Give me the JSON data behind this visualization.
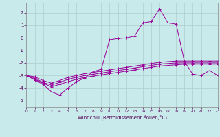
{
  "xlabel": "Windchill (Refroidissement éolien,°C)",
  "background_color": "#c8eaea",
  "grid_color": "#b0cccc",
  "line_color": "#990099",
  "xlim": [
    0,
    23
  ],
  "ylim": [
    -5.5,
    2.8
  ],
  "yticks": [
    -5,
    -4,
    -3,
    -2,
    -1,
    0,
    1,
    2
  ],
  "xticks": [
    0,
    1,
    2,
    3,
    4,
    5,
    6,
    7,
    8,
    9,
    10,
    11,
    12,
    13,
    14,
    15,
    16,
    17,
    18,
    19,
    20,
    21,
    22,
    23
  ],
  "series1_x": [
    0,
    1,
    2,
    3,
    4,
    5,
    6,
    7,
    8,
    9,
    10,
    11,
    12,
    13,
    14,
    15,
    16,
    17,
    18,
    19,
    20,
    21,
    22,
    23
  ],
  "series1_y": [
    -3.0,
    -3.3,
    -3.6,
    -3.9,
    -3.7,
    -3.5,
    -3.3,
    -3.15,
    -3.05,
    -2.95,
    -2.85,
    -2.75,
    -2.65,
    -2.55,
    -2.45,
    -2.35,
    -2.25,
    -2.2,
    -2.15,
    -2.1,
    -2.1,
    -2.1,
    -2.1,
    -2.1
  ],
  "series2_x": [
    0,
    1,
    2,
    3,
    4,
    5,
    6,
    7,
    8,
    9,
    10,
    11,
    12,
    13,
    14,
    15,
    16,
    17,
    18,
    19,
    20,
    21,
    22,
    23
  ],
  "series2_y": [
    -3.0,
    -3.2,
    -3.55,
    -3.75,
    -3.55,
    -3.3,
    -3.15,
    -3.0,
    -2.9,
    -2.8,
    -2.7,
    -2.6,
    -2.5,
    -2.4,
    -2.3,
    -2.2,
    -2.1,
    -2.05,
    -2.0,
    -2.0,
    -2.0,
    -2.0,
    -2.0,
    -2.0
  ],
  "series3_x": [
    0,
    1,
    2,
    3,
    4,
    5,
    6,
    7,
    8,
    9,
    10,
    11,
    12,
    13,
    14,
    15,
    16,
    17,
    18,
    19,
    20,
    21,
    22,
    23
  ],
  "series3_y": [
    -3.0,
    -3.1,
    -3.4,
    -3.6,
    -3.4,
    -3.15,
    -3.0,
    -2.85,
    -2.75,
    -2.65,
    -2.55,
    -2.45,
    -2.35,
    -2.25,
    -2.15,
    -2.05,
    -1.95,
    -1.9,
    -1.85,
    -1.85,
    -1.85,
    -1.85,
    -1.85,
    -1.85
  ],
  "series4_x": [
    0,
    1,
    2,
    3,
    4,
    5,
    6,
    7,
    8,
    9,
    10,
    11,
    12,
    13,
    14,
    15,
    16,
    17,
    18,
    19,
    20,
    21,
    22,
    23
  ],
  "series4_y": [
    -3.0,
    -3.35,
    -3.7,
    -4.3,
    -4.55,
    -4.0,
    -3.5,
    -3.2,
    -2.7,
    -2.5,
    -0.15,
    -0.05,
    0.0,
    0.15,
    1.2,
    1.3,
    2.3,
    1.2,
    1.1,
    -1.9,
    -2.9,
    -3.0,
    -2.6,
    -3.0
  ]
}
